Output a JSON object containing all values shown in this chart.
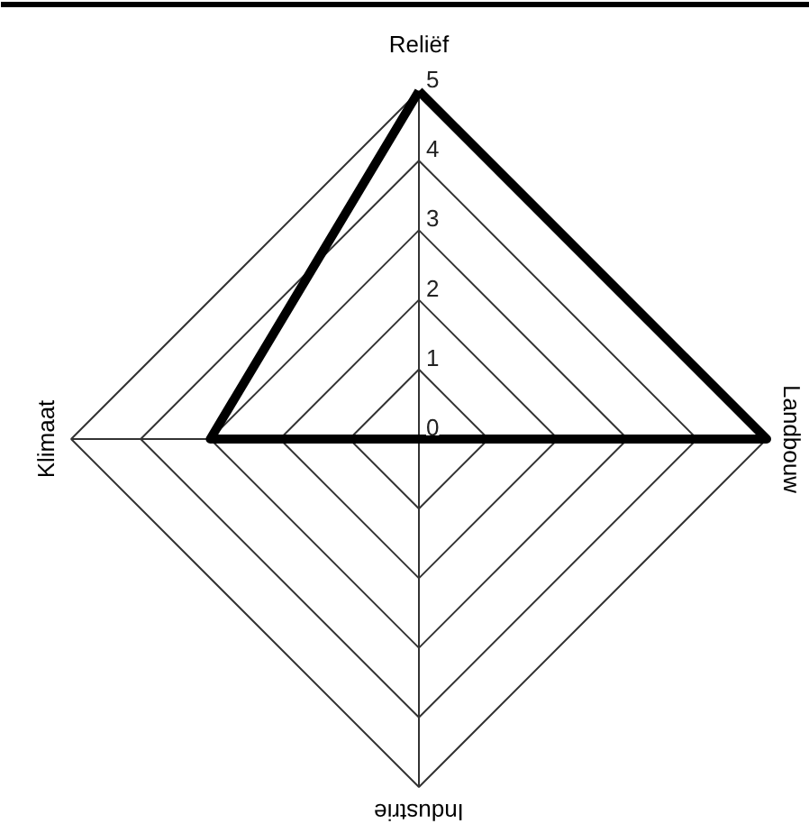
{
  "chart_data": {
    "type": "radar",
    "categories": [
      "Reliëf",
      "Landbouw",
      "Industrie",
      "Klimaat"
    ],
    "series": [
      {
        "color": "#000000",
        "values": [
          5,
          5,
          0,
          3
        ]
      }
    ],
    "ylim": [
      0,
      5
    ],
    "yticks": [
      0,
      1,
      2,
      3,
      4,
      5
    ],
    "grid": true,
    "marker": "none",
    "line_style": "solid"
  }
}
